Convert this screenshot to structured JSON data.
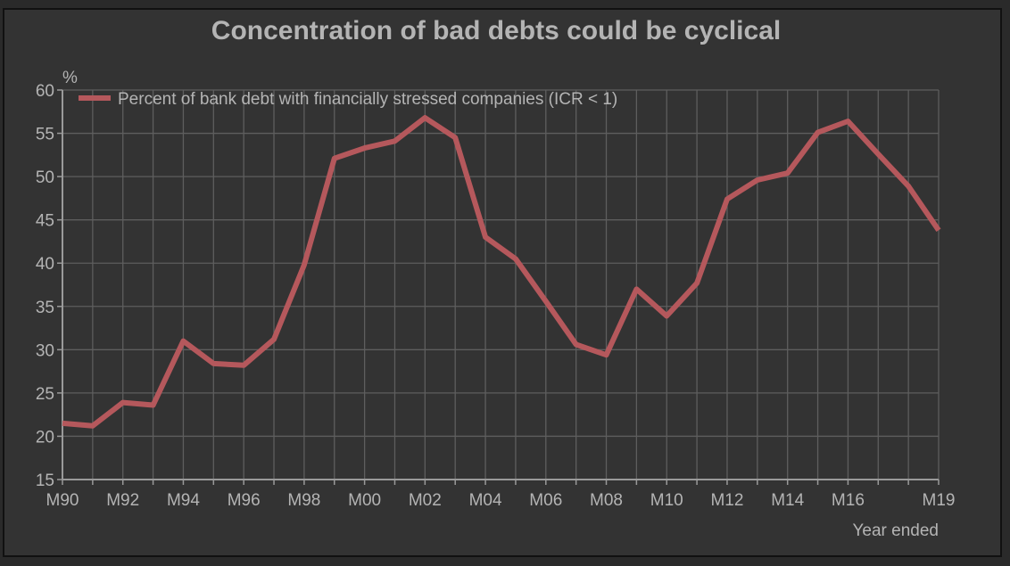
{
  "chart_data": {
    "type": "line",
    "title": "Concentration of bad debts could be cyclical",
    "ylabel": "%",
    "xlabel": "Year ended",
    "ylim": [
      15,
      60
    ],
    "yticks": [
      15,
      20,
      25,
      30,
      35,
      40,
      45,
      50,
      55,
      60
    ],
    "x": [
      "M90",
      "M91",
      "M92",
      "M93",
      "M94",
      "M95",
      "M96",
      "M97",
      "M98",
      "M99",
      "M00",
      "M01",
      "M02",
      "M03",
      "M04",
      "M05",
      "M06",
      "M07",
      "M08",
      "M09",
      "M10",
      "M11",
      "M12",
      "M13",
      "M14",
      "M15",
      "M16",
      "M17",
      "M18",
      "M19"
    ],
    "xtick_labels": [
      "M90",
      "M92",
      "M94",
      "M96",
      "M98",
      "M00",
      "M02",
      "M04",
      "M06",
      "M08",
      "M10",
      "M12",
      "M14",
      "M16",
      "M19"
    ],
    "series": [
      {
        "name": "Percent of bank debt with financially stressed companies (ICR < 1)",
        "color": "#b5585c",
        "values": [
          21.5,
          21.2,
          23.9,
          23.6,
          31.0,
          28.4,
          28.2,
          31.2,
          39.8,
          52.1,
          53.3,
          54.1,
          56.8,
          54.5,
          43.0,
          40.5,
          35.6,
          30.6,
          29.4,
          37.0,
          33.9,
          37.7,
          47.4,
          49.6,
          50.4,
          55.1,
          56.4,
          52.6,
          48.9,
          43.8
        ]
      }
    ],
    "legend_position": "top-left",
    "grid": true
  },
  "colors": {
    "background": "#333333",
    "grid": "#5e5e5e",
    "axis": "#9a9a9a",
    "text": "#b4b4b4"
  }
}
